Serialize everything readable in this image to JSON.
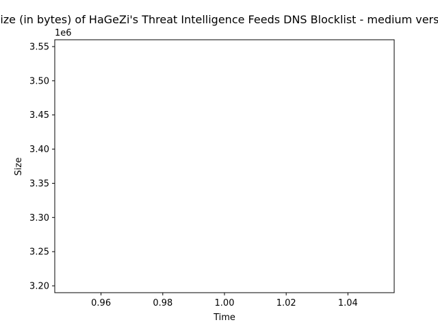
{
  "chart_data": {
    "type": "line",
    "title": "Size (in bytes) of HaGeZi's Threat Intelligence Feeds DNS Blocklist - medium version",
    "xlabel": "Time",
    "ylabel": "Size",
    "y_offset_label": "1e6",
    "xlim": [
      0.945,
      1.055
    ],
    "ylim": [
      3190000,
      3560000
    ],
    "x_ticks": [
      0.96,
      0.98,
      1.0,
      1.02,
      1.04
    ],
    "x_tick_labels": [
      "0.96",
      "0.98",
      "1.00",
      "1.02",
      "1.04"
    ],
    "y_ticks": [
      3200000,
      3250000,
      3300000,
      3350000,
      3400000,
      3450000,
      3500000,
      3550000
    ],
    "y_tick_labels": [
      "3.20",
      "3.25",
      "3.30",
      "3.35",
      "3.40",
      "3.45",
      "3.50",
      "3.55"
    ],
    "series": [
      {
        "x": [],
        "y": []
      }
    ],
    "grid": false
  }
}
